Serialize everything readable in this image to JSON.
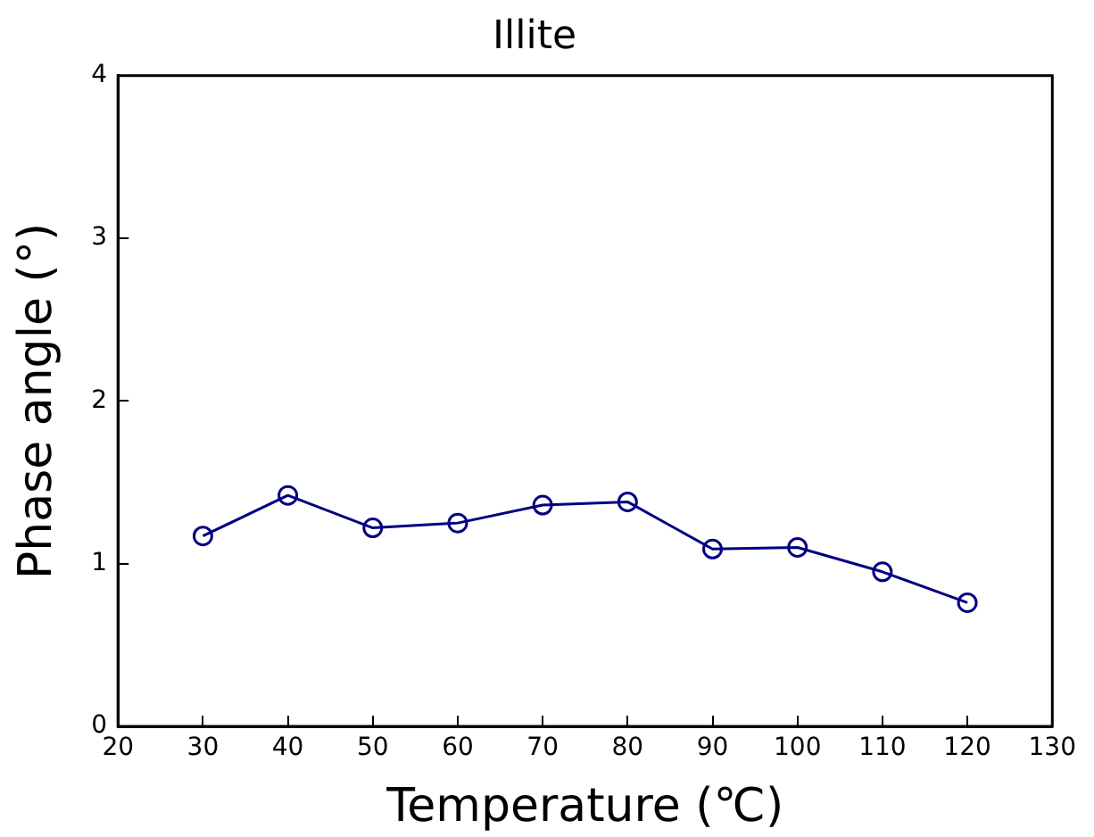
{
  "chart_data": {
    "type": "line",
    "title": "Illite",
    "xlabel": "Temperature (℃)",
    "ylabel": "Phase angle (°)",
    "x": [
      30,
      40,
      50,
      60,
      70,
      80,
      90,
      100,
      110,
      120
    ],
    "series": [
      {
        "color": "#000080",
        "values": [
          1.17,
          1.42,
          1.22,
          1.25,
          1.36,
          1.38,
          1.09,
          1.1,
          0.95,
          0.76
        ]
      }
    ],
    "xlim": [
      20,
      130
    ],
    "xticks": [
      20,
      30,
      40,
      50,
      60,
      70,
      80,
      90,
      100,
      110,
      120,
      130
    ],
    "ylim": [
      0,
      4
    ],
    "yticks": [
      0,
      1,
      2,
      3,
      4
    ],
    "grid": false,
    "legend": false,
    "marker": "circle",
    "line_style": "solid"
  }
}
